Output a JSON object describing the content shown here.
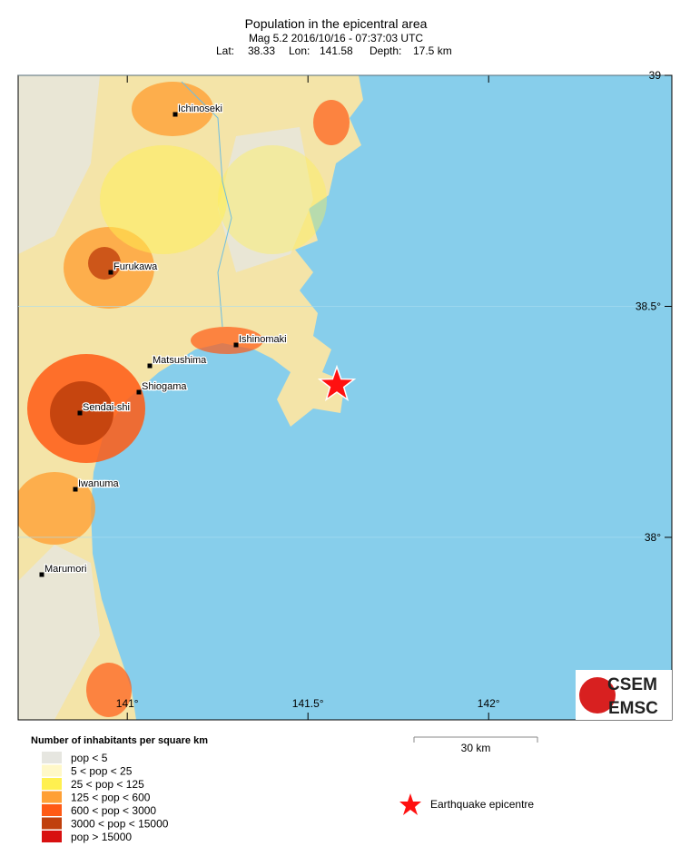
{
  "header": {
    "title": "Population in the epicentral area",
    "line2": "Mag 5.2  2016/10/16 - 07:37:03 UTC",
    "line3": [
      {
        "label": "Lat:",
        "value": 38.33
      },
      {
        "label": "Lon:",
        "value": 141.58
      },
      {
        "label": "Depth:",
        "value": "17.5 km"
      }
    ]
  },
  "map": {
    "xlim": [
      140.698,
      142.507
    ],
    "ylim": [
      37.605,
      39
    ],
    "xticks": [
      {
        "value": 141,
        "label": "141°"
      },
      {
        "value": 141.5,
        "label": "141.5°"
      },
      {
        "value": 142,
        "label": "142°"
      }
    ],
    "yticks": [
      {
        "value": 39,
        "label": "39"
      },
      {
        "value": 38.5,
        "label": "38.5°"
      },
      {
        "value": 38,
        "label": "38°"
      }
    ],
    "cities": [
      "Ichinoseki",
      "Furukawa",
      "Ishinomaki",
      "Matsushima",
      "Shiogama",
      "Sendai-shi",
      "Iwanuma",
      "Marumori"
    ]
  },
  "legend": {
    "title": "Number of inhabitants per square km",
    "items": [
      {
        "label": "pop < 5",
        "color": "#e6e6e0"
      },
      {
        "label": "5 < pop < 25",
        "color": "#fff8c8"
      },
      {
        "label": "25 < pop < 125",
        "color": "#fff050"
      },
      {
        "label": "125 < pop < 600",
        "color": "#ffa035"
      },
      {
        "label": "600 < pop < 3000",
        "color": "#ff5a14"
      },
      {
        "label": "3000 < pop < 15000",
        "color": "#c0400c"
      },
      {
        "label": "pop > 15000",
        "color": "#d81010"
      }
    ],
    "scale": "30 km",
    "epicentre": "Earthquake epicentre"
  },
  "logo": {
    "top": "CSEM",
    "bottom": "EMSC"
  }
}
